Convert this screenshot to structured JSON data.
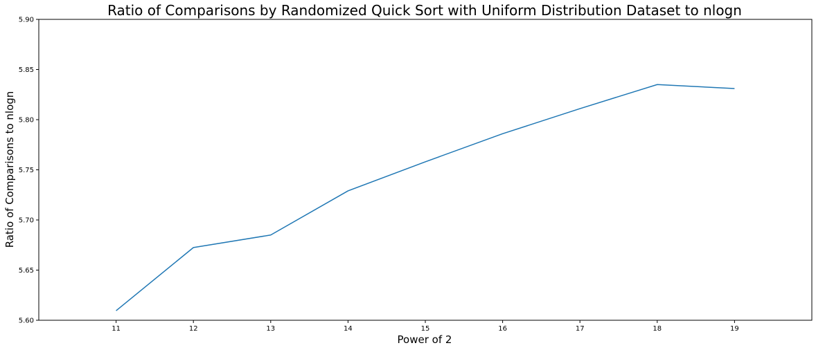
{
  "chart_data": {
    "type": "line",
    "title": "Ratio of Comparisons by Randomized Quick Sort with Uniform Distribution Dataset to nlogn",
    "xlabel": "Power of 2",
    "ylabel": "Ratio of Comparisons to nlogn",
    "x": [
      11,
      12,
      13,
      14,
      15,
      16,
      17,
      18,
      19
    ],
    "series": [
      {
        "values": [
          5.6095,
          5.6725,
          5.685,
          5.729,
          5.758,
          5.786,
          5.811,
          5.835,
          5.831
        ],
        "color": "#1f77b4"
      }
    ],
    "xlim": [
      10,
      20
    ],
    "ylim": [
      5.6,
      5.9
    ],
    "xticks": [
      "11",
      "12",
      "13",
      "14",
      "15",
      "16",
      "17",
      "18",
      "19"
    ],
    "yticks": [
      "5.60",
      "5.65",
      "5.70",
      "5.75",
      "5.80",
      "5.85",
      "5.90"
    ],
    "grid": false,
    "legend": "none"
  }
}
